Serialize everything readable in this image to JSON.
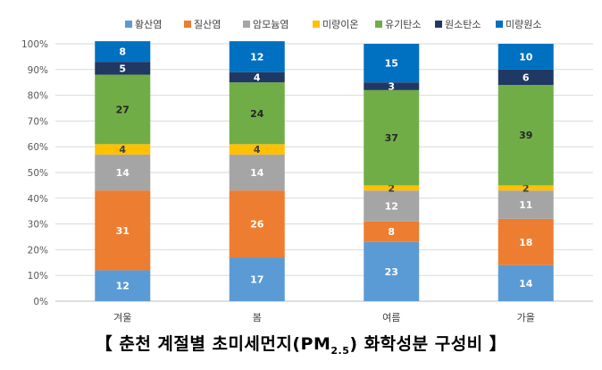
{
  "caption": {
    "prefix": "【 춘천 계절별 초미세먼지(PM",
    "sub": "2.5",
    "suffix": ") 화학성분 구성비 】"
  },
  "chart_data": {
    "type": "bar",
    "stacked": true,
    "categories": [
      "겨울",
      "봄",
      "여름",
      "가을"
    ],
    "ylim": [
      0,
      100
    ],
    "yticks": [
      "0%",
      "10%",
      "20%",
      "30%",
      "40%",
      "50%",
      "60%",
      "70%",
      "80%",
      "90%",
      "100%"
    ],
    "legend_position": "top",
    "grid": true,
    "series": [
      {
        "name": "황산염",
        "color": "#5B9BD5",
        "label_color": "#ffffff",
        "values": [
          12,
          17,
          23,
          14
        ]
      },
      {
        "name": "질산염",
        "color": "#ED7D31",
        "label_color": "#ffffff",
        "values": [
          31,
          26,
          8,
          18
        ]
      },
      {
        "name": "암모늄염",
        "color": "#A5A5A5",
        "label_color": "#ffffff",
        "values": [
          14,
          14,
          12,
          11
        ]
      },
      {
        "name": "미량이온",
        "color": "#FFC000",
        "label_color": "#404040",
        "values": [
          4,
          4,
          2,
          2
        ]
      },
      {
        "name": "유기탄소",
        "color": "#70AD47",
        "label_color": "#262626",
        "values": [
          27,
          24,
          37,
          39
        ]
      },
      {
        "name": "원소탄소",
        "color": "#203864",
        "label_color": "#ffffff",
        "values": [
          5,
          4,
          3,
          6
        ]
      },
      {
        "name": "미량원소",
        "color": "#0070C0",
        "label_color": "#ffffff",
        "values": [
          8,
          12,
          15,
          10
        ]
      }
    ]
  }
}
